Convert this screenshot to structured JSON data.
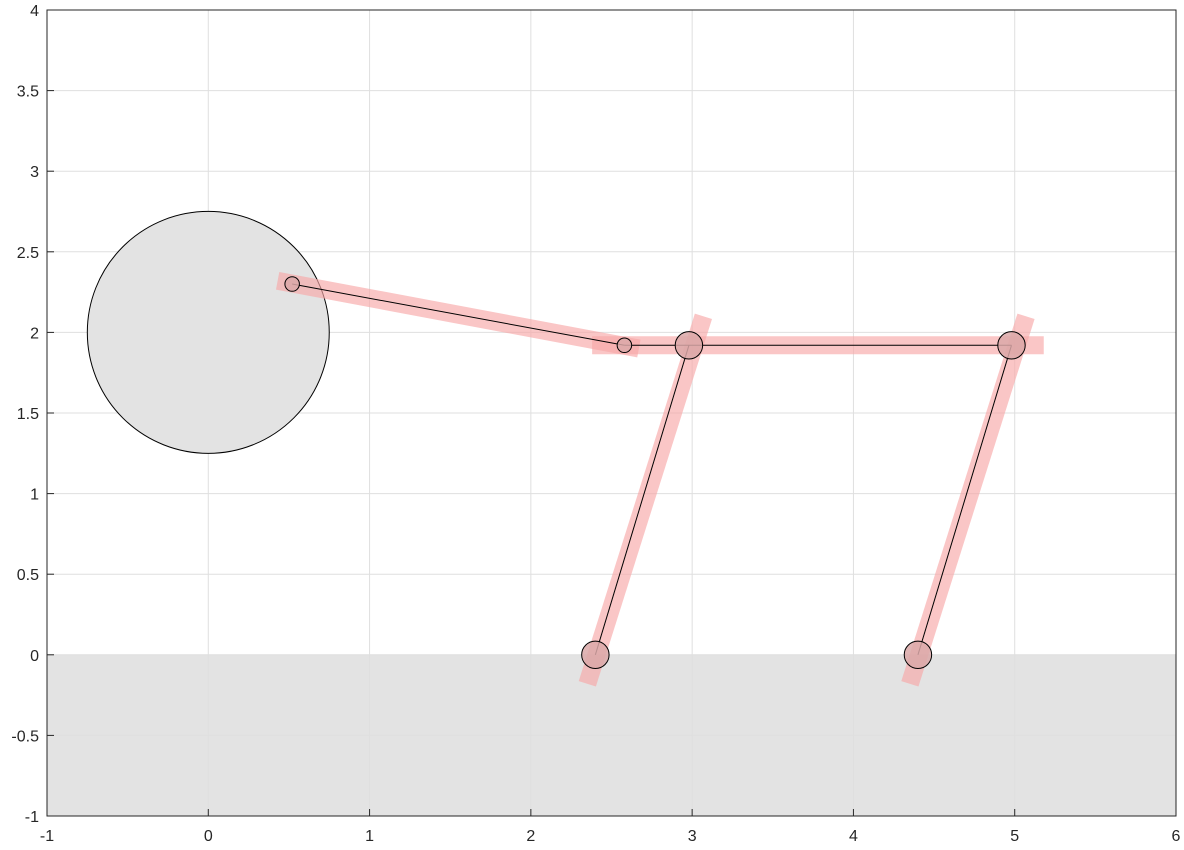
{
  "chart_data": {
    "type": "scatter",
    "title": "",
    "xlabel": "",
    "ylabel": "",
    "xlim": [
      -1,
      6
    ],
    "ylim": [
      -1,
      4
    ],
    "grid": true,
    "x_ticks": [
      -1,
      0,
      1,
      2,
      3,
      4,
      5,
      6
    ],
    "x_tick_labels": [
      "-1",
      "0",
      "1",
      "2",
      "3",
      "4",
      "5",
      "6"
    ],
    "y_ticks": [
      -1,
      -0.5,
      0,
      0.5,
      1,
      1.5,
      2,
      2.5,
      3,
      3.5,
      4
    ],
    "y_tick_labels": [
      "-1",
      "-0.5",
      "0",
      "0.5",
      "1",
      "1.5",
      "2",
      "2.5",
      "3",
      "3.5",
      "4"
    ],
    "ground": {
      "y_top": 0,
      "y_bottom": -1,
      "color": "#e3e3e3"
    },
    "wheel": {
      "center": [
        0,
        2
      ],
      "radius": 0.75,
      "fill": "#e3e3e3",
      "stroke": "#000000"
    },
    "joints": [
      {
        "name": "crank-pin",
        "x": 0.52,
        "y": 2.3,
        "r": 0.045
      },
      {
        "name": "coupler-joint",
        "x": 2.58,
        "y": 1.92,
        "r": 0.045
      },
      {
        "name": "front-hip",
        "x": 2.98,
        "y": 1.92,
        "r": 0.085
      },
      {
        "name": "rear-hip",
        "x": 4.98,
        "y": 1.92,
        "r": 0.085
      },
      {
        "name": "front-foot",
        "x": 2.4,
        "y": 0.0,
        "r": 0.085
      },
      {
        "name": "rear-foot",
        "x": 4.4,
        "y": 0.0,
        "r": 0.085
      }
    ],
    "links": [
      {
        "name": "crank-link",
        "x1": 0.52,
        "y1": 2.3,
        "x2": 2.58,
        "y2": 1.92
      },
      {
        "name": "body-link",
        "x1": 2.58,
        "y1": 1.92,
        "x2": 4.98,
        "y2": 1.92
      },
      {
        "name": "front-leg-link",
        "x1": 2.98,
        "y1": 1.92,
        "x2": 2.4,
        "y2": 0.0
      },
      {
        "name": "rear-leg-link",
        "x1": 4.98,
        "y1": 1.92,
        "x2": 4.4,
        "y2": 0.0
      }
    ],
    "bars": [
      {
        "name": "crank-bar",
        "x1": 0.43,
        "y1": 2.32,
        "x2": 2.67,
        "y2": 1.9
      },
      {
        "name": "body-bar",
        "x1": 2.38,
        "y1": 1.92,
        "x2": 5.18,
        "y2": 1.92
      },
      {
        "name": "front-leg-bar",
        "x1": 3.07,
        "y1": 2.1,
        "x2": 2.35,
        "y2": -0.18
      },
      {
        "name": "rear-leg-bar",
        "x1": 5.07,
        "y1": 2.1,
        "x2": 4.35,
        "y2": -0.18
      }
    ],
    "colors": {
      "bar": "#f7a8a8",
      "joint_fill": "#dba8a8",
      "grid": "#dfdfdf",
      "axis": "#262626"
    }
  }
}
